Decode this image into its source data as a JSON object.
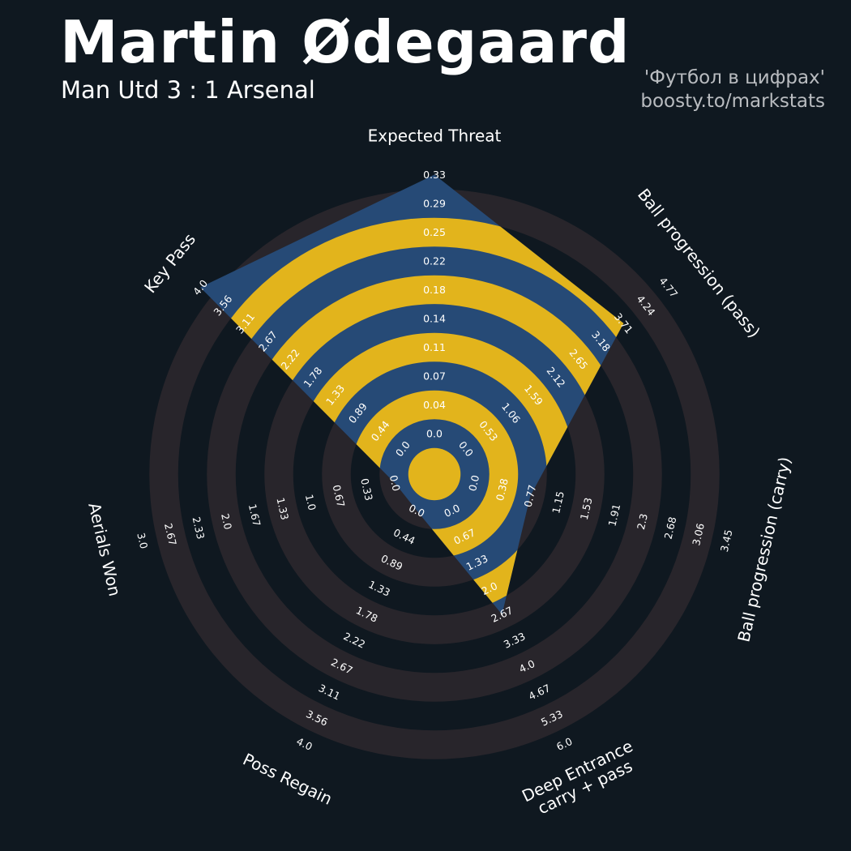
{
  "header": {
    "title": "Martin Ødegaard",
    "subtitle": "Man Utd 3 : 1 Arsenal",
    "credit_line1": "'Футбол в цифрах'",
    "credit_line2": "boosty.to/markstats"
  },
  "colors": {
    "background": "#0f1820",
    "player_fill": "#264a76",
    "ring_highlight": "#e2b41c",
    "range_ring": "#28252b"
  },
  "chart_data": {
    "type": "radar",
    "title": "Martin Ødegaard",
    "subtitle": "Man Utd 3 : 1 Arsenal",
    "params": [
      "Expected Threat",
      "Ball progression (pass)",
      "Ball progression (carry)",
      "Deep Entrance\ncarry + pass",
      "Poss Regain",
      "Aerials Won",
      "Key Pass"
    ],
    "values": [
      0.33,
      3.71,
      0.77,
      2.67,
      0.0,
      0.0,
      4.0
    ],
    "ranges": [
      [
        0.0,
        0.33
      ],
      [
        0.0,
        4.77
      ],
      [
        0.0,
        3.45
      ],
      [
        0.0,
        6.0
      ],
      [
        0.0,
        4.0
      ],
      [
        0.0,
        3.0
      ],
      [
        0.0,
        4.0
      ]
    ],
    "tick_labels": [
      [
        "0.0",
        "0.04",
        "0.07",
        "0.11",
        "0.14",
        "0.18",
        "0.22",
        "0.25",
        "0.29",
        "0.33"
      ],
      [
        "0.0",
        "0.53",
        "1.06",
        "1.59",
        "2.12",
        "2.65",
        "3.18",
        "3.71",
        "4.24",
        "4.77"
      ],
      [
        "0.0",
        "0.38",
        "0.77",
        "1.15",
        "1.53",
        "1.91",
        "2.3",
        "2.68",
        "3.06",
        "3.45"
      ],
      [
        "0.0",
        "0.67",
        "1.33",
        "2.0",
        "2.67",
        "3.33",
        "4.0",
        "4.67",
        "5.33",
        "6.0"
      ],
      [
        "0.0",
        "0.44",
        "0.89",
        "1.33",
        "1.78",
        "2.22",
        "2.67",
        "3.11",
        "3.56",
        "4.0"
      ],
      [
        "0.0",
        "0.33",
        "0.67",
        "1.0",
        "1.33",
        "1.67",
        "2.0",
        "2.33",
        "2.67",
        "3.0"
      ],
      [
        "0.0",
        "0.44",
        "0.89",
        "1.33",
        "1.78",
        "2.22",
        "2.67",
        "3.11",
        "3.56",
        "4.0"
      ]
    ],
    "legend": "none",
    "grid": "concentric rings"
  }
}
